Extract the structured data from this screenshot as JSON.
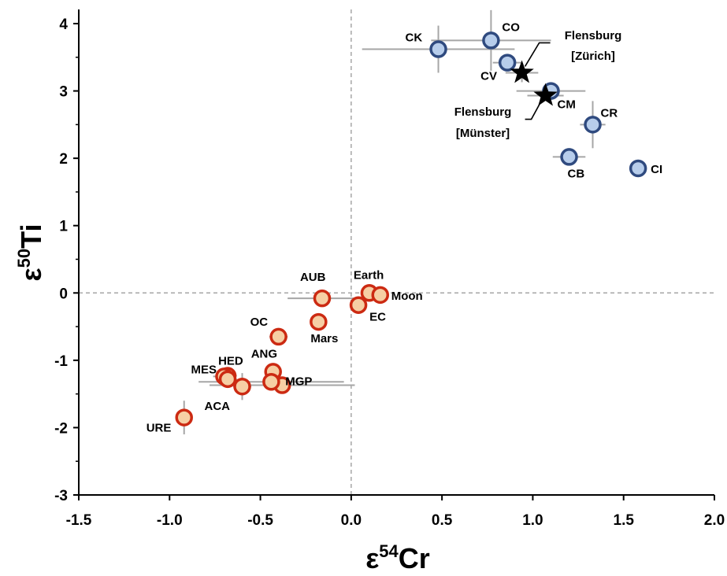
{
  "chart_data": {
    "type": "scatter",
    "xlabel": {
      "base": "ε",
      "sup": "54",
      "rest": "Cr"
    },
    "ylabel": {
      "base": "ε",
      "sup": "50",
      "rest": "Ti"
    },
    "xlim": [
      -1.5,
      2.0
    ],
    "ylim": [
      -3,
      4.2
    ],
    "xticks": [
      -1.5,
      -1.0,
      -0.5,
      0.0,
      0.5,
      1.0,
      1.5,
      2.0
    ],
    "xtick_labels": [
      "-1.5",
      "-1.0",
      "-0.5",
      "0.0",
      "0.5",
      "1.0",
      "1.5",
      "2.0"
    ],
    "yticks": [
      -3,
      -2,
      -1,
      0,
      1,
      2,
      3,
      4
    ],
    "ytick_labels": [
      "-3",
      "-2",
      "-1",
      "0",
      "1",
      "2",
      "3",
      "4"
    ],
    "grid": false,
    "reference_lines": {
      "x": 0,
      "y": 0,
      "style": "dashed"
    },
    "colors": {
      "carbonaceous_fill": "#b7cdeb",
      "carbonaceous_edge": "#2f4a7f",
      "noncarbonaceous_fill": "#f6cfa4",
      "noncarbonaceous_edge": "#cc2a12",
      "errorbar": "#a6a6a6",
      "reference_line": "#a6a6a6",
      "star": "#000000"
    },
    "series": [
      {
        "group": "carbonaceous",
        "points": [
          {
            "label": "CK",
            "x": 0.48,
            "y": 3.62,
            "xerr": 0.42,
            "yerr": 0.35
          },
          {
            "label": "CO",
            "x": 0.77,
            "y": 3.75,
            "xerr": 0.33,
            "yerr": 0.45
          },
          {
            "label": "CV",
            "x": 0.86,
            "y": 3.42,
            "xerr": 0.08,
            "yerr": 0.12
          },
          {
            "label": "CM",
            "x": 1.1,
            "y": 3.0,
            "xerr": 0.19,
            "yerr": 0.1
          },
          {
            "label": "CR",
            "x": 1.33,
            "y": 2.5,
            "xerr": 0.07,
            "yerr": 0.35
          },
          {
            "label": "CB",
            "x": 1.2,
            "y": 2.02,
            "xerr": 0.09,
            "yerr": 0.06
          },
          {
            "label": "CI",
            "x": 1.58,
            "y": 1.85,
            "xerr": 0.04,
            "yerr": 0.04
          }
        ]
      },
      {
        "group": "non-carbonaceous",
        "points": [
          {
            "label": "AUB",
            "x": -0.16,
            "y": -0.08,
            "xerr": 0.19,
            "yerr": 0.05
          },
          {
            "label": "Earth",
            "x": 0.1,
            "y": 0.0,
            "xerr": 0.04,
            "yerr": 0.04
          },
          {
            "label": "Moon",
            "x": 0.16,
            "y": -0.03,
            "xerr": 0.04,
            "yerr": 0.04
          },
          {
            "label": "EC",
            "x": 0.04,
            "y": -0.18,
            "xerr": 0.04,
            "yerr": 0.04
          },
          {
            "label": "OC",
            "x": -0.4,
            "y": -0.65,
            "xerr": 0.05,
            "yerr": 0.06
          },
          {
            "label": "Mars",
            "x": -0.18,
            "y": -0.43,
            "xerr": 0.04,
            "yerr": 0.04
          },
          {
            "label": "ANG",
            "x": -0.43,
            "y": -1.17,
            "xerr": 0.04,
            "yerr": 0.06
          },
          {
            "label": "MGP",
            "x": -0.38,
            "y": -1.37,
            "xerr": 0.4,
            "yerr": 0.05
          },
          {
            "label": "",
            "x": -0.44,
            "y": -1.32,
            "xerr": 0.4,
            "yerr": 0.06
          },
          {
            "label": "HED",
            "x": -0.68,
            "y": -1.23,
            "xerr": 0.05,
            "yerr": 0.04
          },
          {
            "label": "MES",
            "x": -0.7,
            "y": -1.24,
            "xerr": 0.06,
            "yerr": 0.04
          },
          {
            "label": "",
            "x": -0.68,
            "y": -1.28,
            "xerr": 0.05,
            "yerr": 0.05
          },
          {
            "label": "ACA",
            "x": -0.6,
            "y": -1.39,
            "xerr": 0.05,
            "yerr": 0.2
          },
          {
            "label": "URE",
            "x": -0.92,
            "y": -1.85,
            "xerr": 0.04,
            "yerr": 0.25
          }
        ]
      },
      {
        "group": "Flensburg",
        "points": [
          {
            "label": "Flensburg [Zürich]",
            "label_lines": [
              "Flensburg",
              "[Zürich]"
            ],
            "x": 0.94,
            "y": 3.27,
            "xerr": 0.09,
            "yerr": 0.14
          },
          {
            "label": "Flensburg [Münster]",
            "label_lines": [
              "Flensburg",
              "[Münster]"
            ],
            "x": 1.07,
            "y": 2.93,
            "xerr": 0.1,
            "yerr": 0.06
          }
        ]
      }
    ]
  }
}
